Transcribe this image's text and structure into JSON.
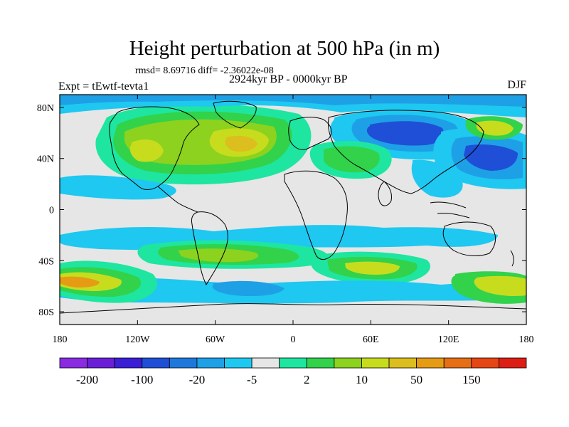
{
  "header": {
    "title": "Height perturbation at 500 hPa (in m)",
    "stats": "rmsd= 8.69716 diff= -2.36022e-08",
    "period": "2924kyr BP - 0000kyr BP",
    "experiment": "Expt = tEwtf-tevta1",
    "season": "DJF"
  },
  "map": {
    "lon_ticks": [
      "180",
      "120W",
      "60W",
      "0",
      "60E",
      "120E",
      "180"
    ],
    "lat_ticks": [
      "80N",
      "40N",
      "0",
      "40S",
      "80S"
    ],
    "projection": "cylindrical-equidistant",
    "background_color": "#e6e6e6"
  },
  "colorbar": {
    "labels": [
      "-200",
      "-100",
      "-20",
      "-5",
      "2",
      "10",
      "50",
      "150"
    ],
    "colors": [
      "#8a2be2",
      "#6a1fd6",
      "#3a1fd6",
      "#1f4fd6",
      "#1e78dc",
      "#1ea0e6",
      "#1ec8f0",
      "#e6e6e6",
      "#1ee6a0",
      "#32d24b",
      "#8cd21e",
      "#c8dc1e",
      "#dcbe1e",
      "#e69b14",
      "#e66e14",
      "#e64614",
      "#dc1e14"
    ]
  },
  "palette": {
    "strong_neg": "#1f4fd6",
    "mid_neg": "#1ea0e6",
    "weak_neg": "#1ec8f0",
    "neutral": "#e6e6e6",
    "weak_pos": "#1ee6a0",
    "mid_pos": "#32d24b",
    "pos": "#8cd21e",
    "strong_pos": "#c8dc1e",
    "peak_pos": "#dcbe1e",
    "max_pos": "#e69b14"
  }
}
